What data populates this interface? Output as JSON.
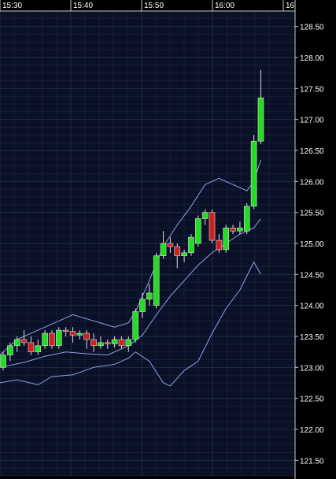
{
  "colors": {
    "background": "#000000",
    "plot_background": "#0a1026",
    "grid": "#1e2a4a",
    "axis": "#c8c8c8",
    "text": "#ffffff",
    "up": "#22dd22",
    "down": "#cc2222",
    "band": "#8ea3e6"
  },
  "chart_data": {
    "type": "candlestick",
    "x_ticks": [
      "15:30",
      "15:40",
      "15:50",
      "16:00",
      "16"
    ],
    "y_ticks": [
      "128.50",
      "128.00",
      "127.50",
      "127.00",
      "126.50",
      "126.00",
      "125.50",
      "125.00",
      "124.50",
      "124.00",
      "123.50",
      "123.00",
      "122.50",
      "122.00",
      "121.50"
    ],
    "ylim": [
      121.25,
      128.75
    ],
    "grid": true,
    "interval_minutes": 1,
    "candles": [
      {
        "t": 0,
        "o": 123.0,
        "h": 123.25,
        "l": 122.95,
        "c": 123.2
      },
      {
        "t": 1,
        "o": 123.2,
        "h": 123.4,
        "l": 123.1,
        "c": 123.35
      },
      {
        "t": 2,
        "o": 123.35,
        "h": 123.5,
        "l": 123.25,
        "c": 123.45
      },
      {
        "t": 3,
        "o": 123.45,
        "h": 123.6,
        "l": 123.35,
        "c": 123.4
      },
      {
        "t": 4,
        "o": 123.4,
        "h": 123.5,
        "l": 123.2,
        "c": 123.25
      },
      {
        "t": 5,
        "o": 123.25,
        "h": 123.45,
        "l": 123.2,
        "c": 123.35
      },
      {
        "t": 6,
        "o": 123.35,
        "h": 123.6,
        "l": 123.3,
        "c": 123.55
      },
      {
        "t": 7,
        "o": 123.55,
        "h": 123.6,
        "l": 123.3,
        "c": 123.35
      },
      {
        "t": 8,
        "o": 123.35,
        "h": 123.65,
        "l": 123.3,
        "c": 123.6
      },
      {
        "t": 9,
        "o": 123.6,
        "h": 123.65,
        "l": 123.5,
        "c": 123.58
      },
      {
        "t": 10,
        "o": 123.58,
        "h": 123.65,
        "l": 123.4,
        "c": 123.52
      },
      {
        "t": 11,
        "o": 123.52,
        "h": 123.6,
        "l": 123.45,
        "c": 123.55
      },
      {
        "t": 12,
        "o": 123.55,
        "h": 123.6,
        "l": 123.3,
        "c": 123.45
      },
      {
        "t": 13,
        "o": 123.45,
        "h": 123.55,
        "l": 123.25,
        "c": 123.35
      },
      {
        "t": 14,
        "o": 123.35,
        "h": 123.5,
        "l": 123.3,
        "c": 123.4
      },
      {
        "t": 15,
        "o": 123.4,
        "h": 123.45,
        "l": 123.3,
        "c": 123.38
      },
      {
        "t": 16,
        "o": 123.38,
        "h": 123.5,
        "l": 123.32,
        "c": 123.45
      },
      {
        "t": 17,
        "o": 123.45,
        "h": 123.5,
        "l": 123.3,
        "c": 123.35
      },
      {
        "t": 18,
        "o": 123.35,
        "h": 123.5,
        "l": 123.25,
        "c": 123.45
      },
      {
        "t": 19,
        "o": 123.45,
        "h": 123.95,
        "l": 123.4,
        "c": 123.9
      },
      {
        "t": 20,
        "o": 123.9,
        "h": 124.2,
        "l": 123.8,
        "c": 124.1
      },
      {
        "t": 21,
        "o": 124.1,
        "h": 124.35,
        "l": 124.0,
        "c": 124.2
      },
      {
        "t": 22,
        "o": 124.0,
        "h": 124.85,
        "l": 123.95,
        "c": 124.8
      },
      {
        "t": 23,
        "o": 124.8,
        "h": 125.2,
        "l": 124.75,
        "c": 125.0
      },
      {
        "t": 24,
        "o": 125.0,
        "h": 125.1,
        "l": 124.85,
        "c": 124.95
      },
      {
        "t": 25,
        "o": 124.95,
        "h": 125.0,
        "l": 124.6,
        "c": 124.8
      },
      {
        "t": 26,
        "o": 124.8,
        "h": 124.9,
        "l": 124.7,
        "c": 124.85
      },
      {
        "t": 27,
        "o": 124.85,
        "h": 125.15,
        "l": 124.8,
        "c": 125.1
      },
      {
        "t": 28,
        "o": 125.0,
        "h": 125.45,
        "l": 124.95,
        "c": 125.4
      },
      {
        "t": 29,
        "o": 125.4,
        "h": 125.55,
        "l": 125.3,
        "c": 125.5
      },
      {
        "t": 30,
        "o": 125.5,
        "h": 125.55,
        "l": 125.0,
        "c": 125.05
      },
      {
        "t": 31,
        "o": 125.05,
        "h": 125.15,
        "l": 124.85,
        "c": 124.9
      },
      {
        "t": 32,
        "o": 124.9,
        "h": 125.3,
        "l": 124.85,
        "c": 125.25
      },
      {
        "t": 33,
        "o": 125.25,
        "h": 125.3,
        "l": 125.15,
        "c": 125.2
      },
      {
        "t": 34,
        "o": 125.2,
        "h": 125.35,
        "l": 125.15,
        "c": 125.25
      },
      {
        "t": 35,
        "o": 125.2,
        "h": 125.65,
        "l": 125.15,
        "c": 125.6
      },
      {
        "t": 36,
        "o": 125.6,
        "h": 126.75,
        "l": 125.55,
        "c": 126.65
      },
      {
        "t": 37,
        "o": 126.65,
        "h": 127.8,
        "l": 126.6,
        "c": 127.35
      }
    ],
    "bands": [
      {
        "name": "upper",
        "x": [
          -0.5,
          2,
          4,
          7,
          10,
          13,
          16,
          18,
          19,
          21,
          23,
          25,
          27,
          29,
          31,
          33,
          35,
          36,
          37
        ],
        "y": [
          123.2,
          123.45,
          123.55,
          123.7,
          123.85,
          123.75,
          123.65,
          123.72,
          123.9,
          124.4,
          124.95,
          125.3,
          125.6,
          125.95,
          126.05,
          125.95,
          125.85,
          126.0,
          126.35
        ]
      },
      {
        "name": "middle",
        "x": [
          -0.5,
          3,
          6,
          9,
          12,
          15,
          18,
          20,
          22,
          24,
          26,
          28,
          30,
          32,
          34,
          36,
          37
        ],
        "y": [
          123.0,
          123.08,
          123.18,
          123.25,
          123.22,
          123.2,
          123.35,
          123.52,
          123.85,
          124.15,
          124.4,
          124.65,
          124.85,
          125.0,
          125.15,
          125.25,
          125.4
        ]
      },
      {
        "name": "lower",
        "x": [
          -0.5,
          2,
          5,
          7,
          10,
          13,
          16,
          18,
          19,
          21,
          23,
          24,
          26,
          28,
          30,
          32,
          34,
          36,
          37
        ],
        "y": [
          122.75,
          122.8,
          122.72,
          122.85,
          122.88,
          123.0,
          123.05,
          123.15,
          123.25,
          123.1,
          122.75,
          122.7,
          122.95,
          123.1,
          123.55,
          123.95,
          124.25,
          124.7,
          124.5
        ]
      }
    ]
  }
}
